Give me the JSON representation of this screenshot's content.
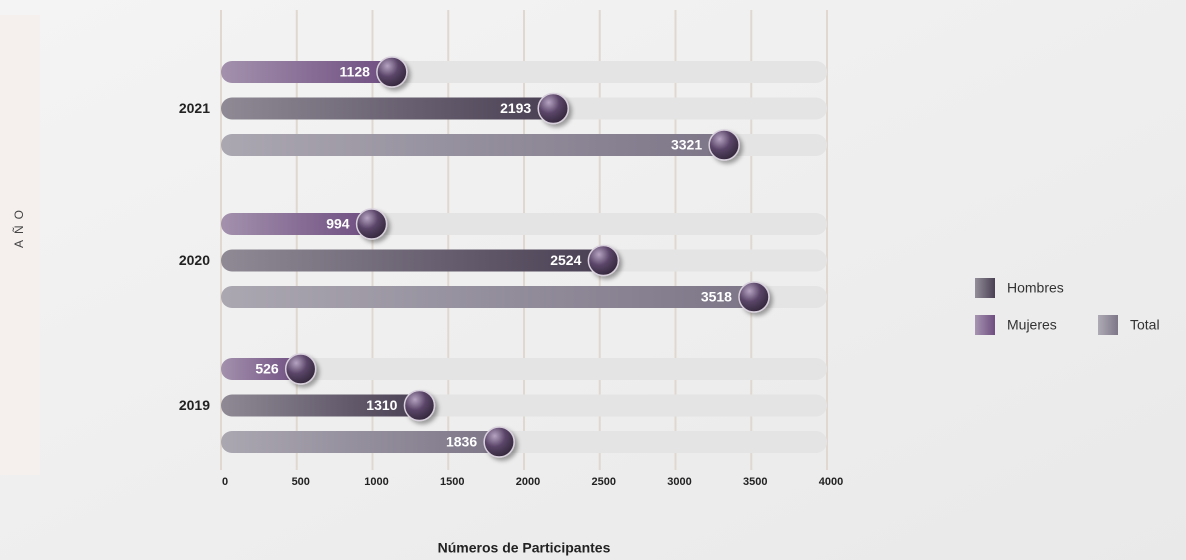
{
  "chart_data": {
    "type": "bar",
    "orientation": "horizontal",
    "x_label": "Números de Participantes",
    "y_label": "AÑO",
    "categories": [
      "2021",
      "2020",
      "2019"
    ],
    "series": [
      {
        "name": "Mujeres",
        "color": "#6e4d80",
        "values": [
          1128,
          994,
          526
        ]
      },
      {
        "name": "Hombres",
        "color": "#4a4054",
        "values": [
          2193,
          2524,
          1310
        ]
      },
      {
        "name": "Total",
        "color": "#7d7688",
        "values": [
          3321,
          3518,
          1836
        ]
      }
    ],
    "xlim": [
      0,
      4000
    ],
    "xticks": [
      0,
      500,
      1000,
      1500,
      2000,
      2500,
      3000,
      3500,
      4000
    ],
    "grid": true
  }
}
